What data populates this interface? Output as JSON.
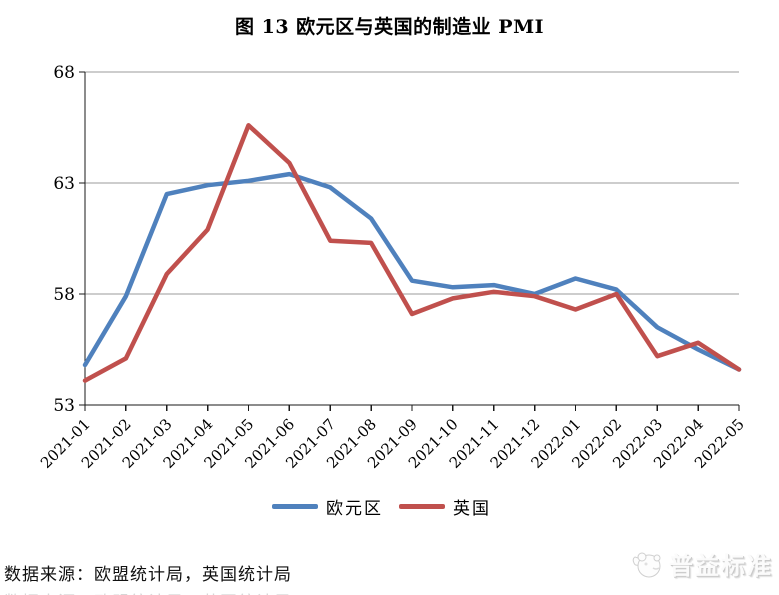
{
  "title": "图 13 欧元区与英国的制造业 PMI",
  "source_note": "数据来源：欧盟统计局，英国统计局",
  "watermark": "普益标准",
  "chart_data": {
    "type": "line",
    "title": "图 13 欧元区与英国的制造业 PMI",
    "categories": [
      "2021-01",
      "2021-02",
      "2021-03",
      "2021-04",
      "2021-05",
      "2021-06",
      "2021-07",
      "2021-08",
      "2021-09",
      "2021-10",
      "2021-11",
      "2021-12",
      "2022-01",
      "2022-02",
      "2022-03",
      "2022-04",
      "2022-05"
    ],
    "series": [
      {
        "name": "欧元区",
        "color": "#4F81BD",
        "values": [
          54.8,
          57.9,
          62.5,
          62.9,
          63.1,
          63.4,
          62.8,
          61.4,
          58.6,
          58.3,
          58.4,
          58.0,
          58.7,
          58.2,
          56.5,
          55.5,
          54.6
        ]
      },
      {
        "name": "英国",
        "color": "#C0504D",
        "values": [
          54.1,
          55.1,
          58.9,
          60.9,
          65.6,
          63.9,
          60.4,
          60.3,
          57.1,
          57.8,
          58.1,
          57.9,
          57.3,
          58.0,
          55.2,
          55.8,
          54.6
        ]
      }
    ],
    "xlabel": "",
    "ylabel": "",
    "ylim": [
      53,
      68
    ],
    "yticks": [
      53,
      58,
      63,
      68
    ],
    "grid": true,
    "legend_position": "bottom",
    "axis_color": "#1a1a1a",
    "gridline_color": "#9b9b9b",
    "line_width": 4.5
  }
}
